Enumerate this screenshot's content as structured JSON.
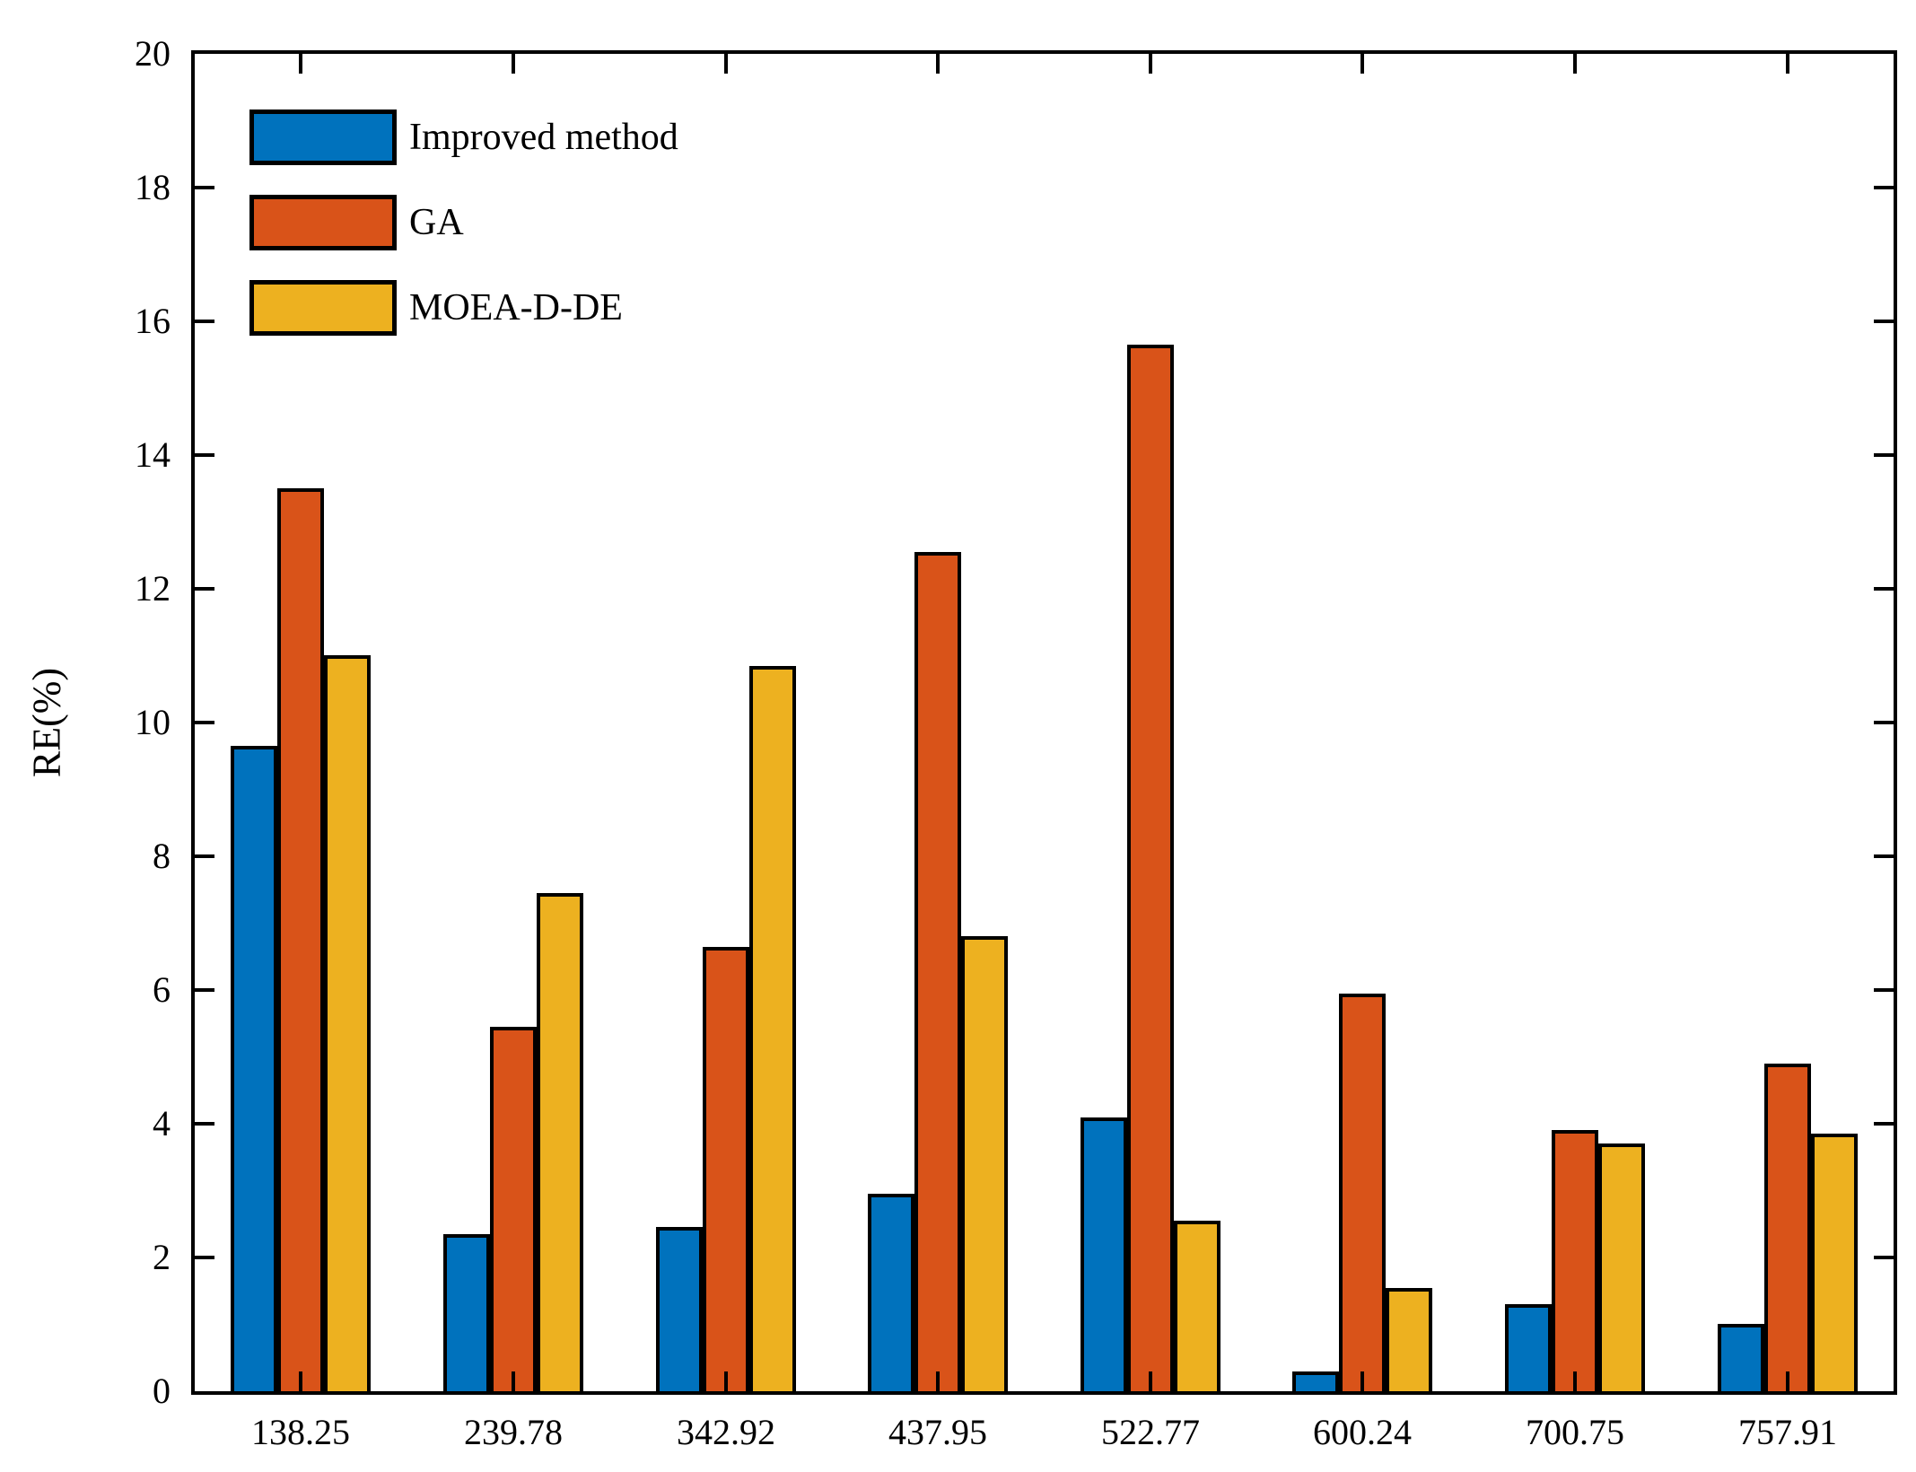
{
  "figure": {
    "background": "#ffffff",
    "axis_color": "#000000",
    "text_color": "#000000"
  },
  "chart_data": {
    "type": "bar",
    "title": "",
    "xlabel": "",
    "ylabel": "RE(%)",
    "ylim": [
      0,
      20
    ],
    "yticks": [
      0,
      2,
      4,
      6,
      8,
      10,
      12,
      14,
      16,
      18,
      20
    ],
    "grid": false,
    "box": true,
    "tick_direction": "in",
    "legend_position": "top-left-inside",
    "bar_edge_color": "#000000",
    "categories": [
      "138.25",
      "239.78",
      "342.92",
      "437.95",
      "522.77",
      "600.24",
      "700.75",
      "757.91"
    ],
    "series": [
      {
        "name": "Improved method",
        "color": "#0072BD",
        "values": [
          9.65,
          2.35,
          2.45,
          2.95,
          4.1,
          0.3,
          1.3,
          1.0
        ]
      },
      {
        "name": "GA",
        "color": "#D95319",
        "values": [
          13.5,
          5.45,
          6.65,
          12.55,
          15.65,
          5.95,
          3.9,
          4.9
        ]
      },
      {
        "name": "MOEA-D-DE",
        "color": "#EDB120",
        "values": [
          11.0,
          7.45,
          10.85,
          6.8,
          2.55,
          1.55,
          3.7,
          3.85
        ]
      }
    ]
  }
}
